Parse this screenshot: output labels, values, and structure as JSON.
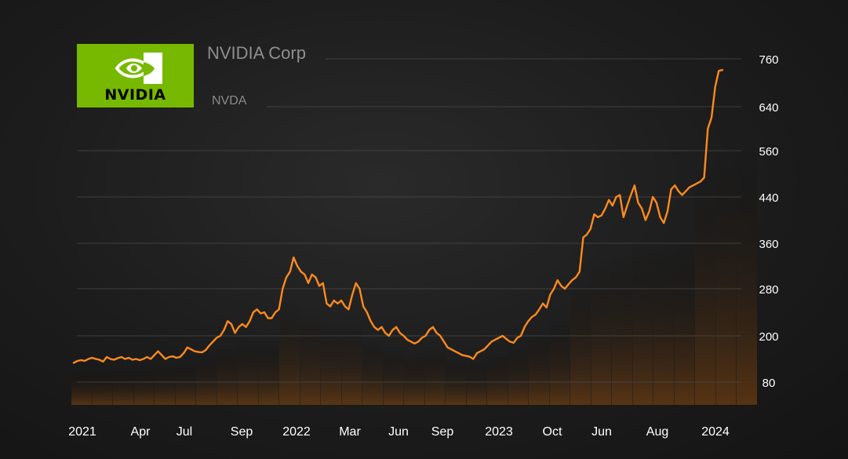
{
  "header": {
    "company_name": "NVIDIA Corp",
    "ticker": "NVDA",
    "logo_text": "NVIDIA"
  },
  "colors": {
    "line": "#ff8a1e",
    "logo_bg": "#76b900",
    "grid": "#4a4a4a",
    "text": "#ffffff",
    "muted": "#8e8e8e"
  },
  "chart_data": {
    "type": "line",
    "title": "NVIDIA Corp",
    "subtitle": "NVDA",
    "xlabel": "",
    "ylabel": "",
    "ylim": [
      40,
      760
    ],
    "yticks": [
      80,
      200,
      280,
      360,
      440,
      560,
      640,
      760
    ],
    "grid": true,
    "y_axis_side": "right",
    "xticks": [
      {
        "label": "2021",
        "x": 0
      },
      {
        "label": "Apr",
        "x": 13
      },
      {
        "label": "Jul",
        "x": 26
      },
      {
        "label": "Sep",
        "x": 39
      },
      {
        "label": "2022",
        "x": 52
      },
      {
        "label": "Mar",
        "x": 65
      },
      {
        "label": "Jun",
        "x": 78
      },
      {
        "label": "Sep",
        "x": 91
      },
      {
        "label": "2023",
        "x": 104
      },
      {
        "label": "Oct",
        "x": 117
      },
      {
        "label": "Jun",
        "x": 130
      },
      {
        "label": "Aug",
        "x": 143
      },
      {
        "label": "2024",
        "x": 156
      }
    ],
    "series": [
      {
        "values": [
          130,
          135,
          137,
          135,
          140,
          143,
          140,
          138,
          133,
          145,
          140,
          138,
          142,
          145,
          140,
          143,
          138,
          140,
          137,
          140,
          145,
          140,
          150,
          160,
          150,
          140,
          145,
          147,
          143,
          145,
          155,
          170,
          165,
          160,
          158,
          157,
          163,
          175,
          185,
          195,
          200,
          210,
          225,
          220,
          205,
          215,
          220,
          215,
          225,
          240,
          245,
          238,
          240,
          230,
          230,
          240,
          245,
          280,
          300,
          310,
          335,
          320,
          310,
          305,
          290,
          305,
          300,
          285,
          290,
          255,
          250,
          260,
          255,
          260,
          250,
          245,
          270,
          290,
          280,
          250,
          240,
          225,
          215,
          210,
          215,
          205,
          200,
          210,
          215,
          205,
          200,
          190,
          185,
          180,
          185,
          195,
          200,
          210,
          215,
          205,
          200,
          185,
          170,
          165,
          160,
          155,
          150,
          148,
          146,
          140,
          155,
          160,
          165,
          175,
          185,
          190,
          195,
          200,
          192,
          185,
          182,
          195,
          200,
          215,
          225,
          232,
          236,
          245,
          255,
          248,
          270,
          280,
          295,
          285,
          280,
          288,
          295,
          300,
          310,
          370,
          375,
          385,
          410,
          405,
          408,
          420,
          435,
          425,
          440,
          445,
          405,
          425,
          445,
          470,
          430,
          420,
          400,
          415,
          440,
          430,
          405,
          395,
          415,
          460,
          470,
          455,
          445,
          455,
          465,
          470,
          475,
          480,
          490,
          600,
          620,
          690,
          730,
          732
        ]
      }
    ]
  }
}
